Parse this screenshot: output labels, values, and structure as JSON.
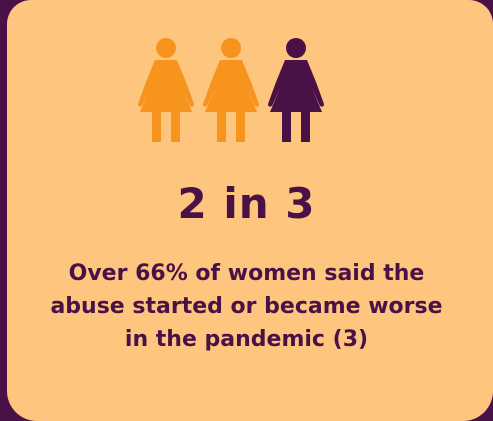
{
  "colors": {
    "background": "#4a1147",
    "card": "#fdc57d",
    "accent_orange": "#f7941d",
    "accent_purple": "#4a1147",
    "text": "#4a1147"
  },
  "figures": [
    {
      "icon": "woman-figure-icon",
      "color": "#f7941d"
    },
    {
      "icon": "woman-figure-icon",
      "color": "#f7941d"
    },
    {
      "icon": "woman-figure-icon",
      "color": "#4a1147"
    }
  ],
  "stat": {
    "ratio_text": "2 in 3",
    "highlighted": 2,
    "total": 3
  },
  "caption": {
    "line1": "Over 66% of women said the",
    "line2": "abuse started or became worse",
    "line3": "in the pandemic (3)"
  }
}
